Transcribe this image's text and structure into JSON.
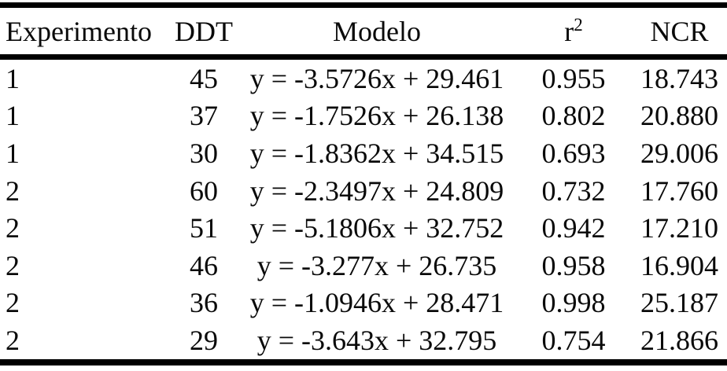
{
  "meta": {
    "background_color": "#ffffff",
    "text_color": "#0a0a0a",
    "rule_color": "#000000",
    "description": "Academic paper table: regression models per experiment"
  },
  "table": {
    "columns": [
      {
        "key": "experimento",
        "label": "Experimento",
        "align": "left"
      },
      {
        "key": "ddt",
        "label": "DDT",
        "align": "center"
      },
      {
        "key": "modelo",
        "label": "Modelo",
        "align": "center"
      },
      {
        "key": "r2",
        "label_base": "r",
        "label_sup": "2",
        "align": "center"
      },
      {
        "key": "ncr",
        "label": "NCR",
        "align": "center"
      }
    ],
    "rows": [
      {
        "experimento": "1",
        "ddt": "45",
        "modelo": "y = -3.5726x + 29.461",
        "r2": "0.955",
        "ncr": "18.743"
      },
      {
        "experimento": "1",
        "ddt": "37",
        "modelo": "y = -1.7526x + 26.138",
        "r2": "0.802",
        "ncr": "20.880"
      },
      {
        "experimento": "1",
        "ddt": "30",
        "modelo": "y = -1.8362x + 34.515",
        "r2": "0.693",
        "ncr": "29.006"
      },
      {
        "experimento": "2",
        "ddt": "60",
        "modelo": "y = -2.3497x + 24.809",
        "r2": "0.732",
        "ncr": "17.760"
      },
      {
        "experimento": "2",
        "ddt": "51",
        "modelo": "y = -5.1806x + 32.752",
        "r2": "0.942",
        "ncr": "17.210"
      },
      {
        "experimento": "2",
        "ddt": "46",
        "modelo": "y = -3.277x + 26.735",
        "r2": "0.958",
        "ncr": "16.904"
      },
      {
        "experimento": "2",
        "ddt": "36",
        "modelo": "y = -1.0946x + 28.471",
        "r2": "0.998",
        "ncr": "25.187"
      },
      {
        "experimento": "2",
        "ddt": "29",
        "modelo": "y = -3.643x + 32.795",
        "r2": "0.754",
        "ncr": "21.866"
      }
    ]
  }
}
